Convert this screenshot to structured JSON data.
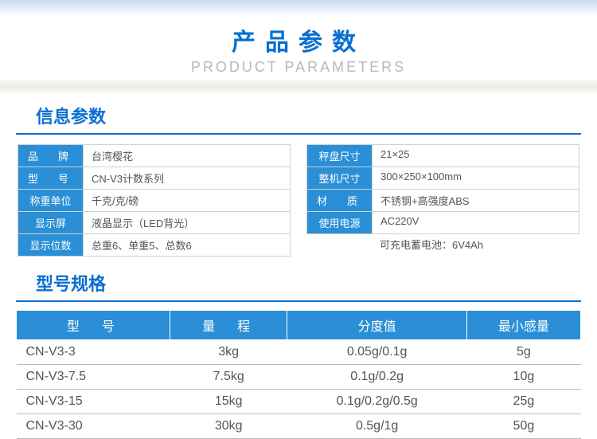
{
  "header": {
    "main_title": "产品参数",
    "sub_title": "PRODUCT PARAMETERS"
  },
  "section1": {
    "title": "信息参数",
    "left": [
      {
        "label": "品　牌",
        "value": "台湾樱花",
        "tight": false
      },
      {
        "label": "型　号",
        "value": "CN-V3计数系列",
        "tight": false
      },
      {
        "label": "称重单位",
        "value": "千克/克/磅",
        "tight": true
      },
      {
        "label": "显示屏",
        "value": "液晶显示（LED背光）",
        "tight": true
      },
      {
        "label": "显示位数",
        "value": "总重6、单重5、总数6",
        "tight": true
      }
    ],
    "right": [
      {
        "label": "秤盘尺寸",
        "value": "21×25",
        "tight": true
      },
      {
        "label": "整机尺寸",
        "value": "300×250×100mm",
        "tight": true
      },
      {
        "label": "材　质",
        "value": "不锈钢+高强度ABS",
        "tight": false
      },
      {
        "label": "使用电源",
        "value": "AC220V",
        "tight": true
      },
      {
        "label": "",
        "value": "可充电蓄电池：6V4Ah",
        "tight": true,
        "nolabel": true
      }
    ]
  },
  "section2": {
    "title": "型号规格",
    "columns": [
      {
        "label": "型　号",
        "tight": false
      },
      {
        "label": "量　程",
        "tight": false
      },
      {
        "label": "分度值",
        "tight": true
      },
      {
        "label": "最小感量",
        "tight": true
      }
    ],
    "rows": [
      [
        "CN-V3-3",
        "3kg",
        "0.05g/0.1g",
        "5g"
      ],
      [
        "CN-V3-7.5",
        "7.5kg",
        "0.1g/0.2g",
        "10g"
      ],
      [
        "CN-V3-15",
        "15kg",
        "0.1g/0.2g/0.5g",
        "25g"
      ],
      [
        "CN-V3-30",
        "30kg",
        "0.5g/1g",
        "50g"
      ]
    ]
  },
  "colors": {
    "accent": "#0a6ed1",
    "cell_header": "#2a8fd6",
    "text": "#555555",
    "border": "#d0d0d0"
  }
}
